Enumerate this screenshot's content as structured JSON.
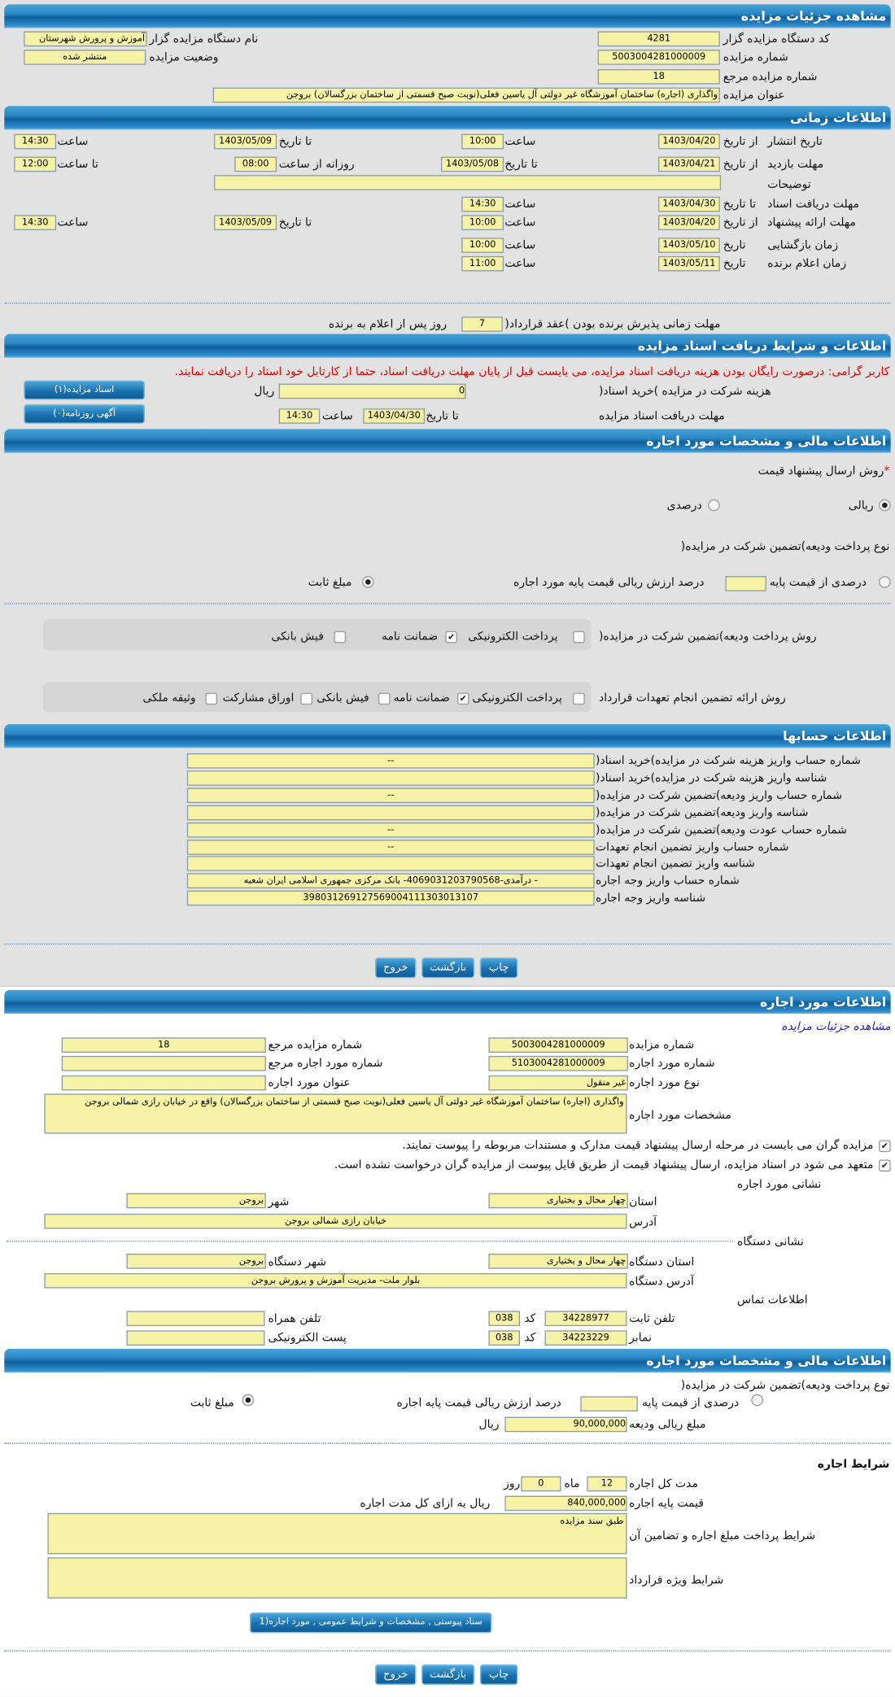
{
  "details": {
    "title": "مشاهده جزئیات مزایده",
    "org_code_label": "کد دستگاه مزایده گزار",
    "org_code": "4281",
    "org_name_label": "نام دستگاه مزایده گزار",
    "org_name": "آموزش و پرورش شهرستان",
    "auction_no_label": "شماره مزایده",
    "auction_no": "5003004281000009",
    "status_label": "وضعیت مزایده",
    "status": "منتشر شده",
    "ref_no_label": "شماره مزایده مرجع",
    "ref_no": "18",
    "title_label": "عنوان مزایده",
    "auction_title": "واگذاری (اجاره) ساختمان  آموزشگاه غیر دولتی آل یاسین فعلی(نوبت صبح قسمتی از ساختمان بزرگسالان) بروجن"
  },
  "time": {
    "title": "اطلاعات زمانی",
    "from_date": "از تاریخ",
    "to_date": "تا تاریخ",
    "date": "تاریخ",
    "hour": "ساعت",
    "to_hour": "تا ساعت",
    "daily_from_hour": "روزانه از ساعت",
    "notes_label": "توضیحات",
    "notes": "",
    "publish": {
      "label": "تاریخ انتشار",
      "from_date": "1403/04/20",
      "from_time": "10:00",
      "to_date": "1403/05/09",
      "to_time": "14:30"
    },
    "visit": {
      "label": "مهلت بازدید",
      "from_date": "1403/04/21",
      "to_date": "1403/05/08",
      "daily_from": "08:00",
      "to_time": "12:00"
    },
    "docs": {
      "label": "مهلت دریافت اسناد",
      "to_date": "1403/04/30",
      "to_time": "14:30"
    },
    "offer": {
      "label": "مهلت ارائه پیشنهاد",
      "from_date": "1403/04/20",
      "from_time": "10:00",
      "to_date": "1403/05/09",
      "to_time": "14:30"
    },
    "opening": {
      "label": "زمان بازگشایی",
      "date": "1403/05/10",
      "time": "10:00"
    },
    "winner": {
      "label": "زمان اعلام برنده",
      "date": "1403/05/11",
      "time": "11:00"
    },
    "acceptance": {
      "label_before": "مهلت زمانی پذیرش برنده بودن )عقد قرارداد(",
      "days": "7",
      "label_after": "روز پس از اعلام به برنده"
    }
  },
  "docs": {
    "title": "اطلاعات و شرایط دریافت اسناد مزایده",
    "notice": "کاربر گرامی: درصورت رایگان بودن هزینه دریافت اسناد مزایده، می بایست قبل از پایان مهلت دریافت اسناد، حتما از کارتابل خود اسناد را دریافت نمایند.",
    "fee_label": "هزینه شرکت در مزایده )خرید اسناد(",
    "fee": "0",
    "currency": "ریال",
    "deadline_label": "مهلت دریافت اسناد مزایده",
    "to_date_label": "تا تاریخ",
    "to_date": "1403/04/30",
    "hour_label": "ساعت",
    "to_time": "14:30",
    "auction_docs_button": "اسناد مزایده(۱)",
    "newspaper_button": "آگهی روزنامه(۰)"
  },
  "finance": {
    "title": "اطلاعات مالی و مشخصات مورد اجاره",
    "required_mark": "*",
    "price_method_label": "روش ارسال پیشنهاد قیمت",
    "price_method_options": [
      {
        "label": "ریالی",
        "checked": true
      },
      {
        "label": "درصدی",
        "checked": false
      }
    ],
    "deposit_type_label": "نوع پرداخت ودیعه)تضمین شرکت در مزایده(",
    "percent_option": "درصدی از قیمت پایه",
    "percent_value": "",
    "percent_desc": "درصد ارزش ریالی قیمت پایه مورد اجاره",
    "fixed_option": "مبلغ ثابت",
    "fixed_checked": true,
    "deposit_method_label": "روش پرداخت ودیعه)تضمین شرکت در مزایده(",
    "deposit_methods": [
      {
        "label": "پرداخت الکترونیکی",
        "checked": false
      },
      {
        "label": "ضمانت نامه",
        "checked": true
      },
      {
        "label": "فیش بانکی",
        "checked": false
      }
    ],
    "guarantee_label": "روش ارائه تضمین انجام تعهدات قرارداد",
    "guarantee_methods": [
      {
        "label": "پرداخت الکترونیکی",
        "checked": false
      },
      {
        "label": "ضمانت نامه",
        "checked": true
      },
      {
        "label": "فیش بانکی",
        "checked": false
      },
      {
        "label": "اوراق مشارکت",
        "checked": false
      },
      {
        "label": "وثیقه ملکی",
        "checked": false
      }
    ]
  },
  "accounts": {
    "title": "اطلاعات حسابها",
    "rows": [
      {
        "label": "شماره حساب واریز هزینه شرکت در مزایده)خرید اسناد(",
        "value": "--"
      },
      {
        "label": "شناسه واریز هزینه شرکت در مزایده)خرید اسناد(",
        "value": ""
      },
      {
        "label": "شماره حساب واریز ودیعه)تضمین شرکت در مزایده(",
        "value": "--"
      },
      {
        "label": "شناسه واریز ودیعه)تضمین شرکت در مزایده(",
        "value": ""
      },
      {
        "label": "شماره حساب عودت ودیعه)تضمین شرکت در مزایده(",
        "value": "--"
      },
      {
        "label": "شماره حساب واریز تضمین انجام تعهدات",
        "value": "--"
      },
      {
        "label": "شناسه واریز تضمین انجام تعهدات",
        "value": ""
      },
      {
        "label": "شماره حساب واریز وجه اجاره",
        "value": "- درآمدی-4069031203790568- بانک مرکزی جمهوری اسلامی ایران شعبه"
      },
      {
        "label": "شناسه واریز وجه اجاره",
        "value": "398031269127569004111303013107"
      }
    ]
  },
  "actions": {
    "print": "چاپ",
    "back": "بازگشت",
    "exit": "خروج"
  },
  "lease": {
    "title": "اطلاعات مورد اجاره",
    "view_details_link": "مشاهده جزئیات مزایده",
    "auction_no_label": "شماره مزایده",
    "auction_no": "5003004281000009",
    "ref_no_label": "شماره مزایده مرجع",
    "ref_no": "18",
    "item_no_label": "شماره مورد اجاره",
    "item_no": "5103004281000009",
    "item_ref_label": "شماره مورد اجاره مرجع",
    "item_ref": "",
    "item_type_label": "نوع مورد اجاره",
    "item_type": "غیر منقول",
    "item_title_label": "عنوان مورد اجاره",
    "item_title": "",
    "spec_label": "مشخصات مورد اجاره",
    "spec": "واگذاری (اجاره) ساختمان  آموزشگاه غیر دولتی آل یاسین فعلی(نوبت صبح قسمتی از ساختمان بزرگسالان) واقع در خیابان رازی شمالی  بروجن",
    "check1": "مزایده گران می بایست در مرحله ارسال پیشنهاد قیمت مدارک و مستندات مربوطه را پیوست نمایند.",
    "check2": "متعهد می شود در اسناد مزایده، ارسال پیشنهاد قیمت از طریق فایل پیوست از مزایده گران درخواست نشده است.",
    "location_title": "نشانی مورد اجاره",
    "province_label": "استان",
    "province": "چهار محال و بختیاری",
    "city_label": "شهر",
    "city": "بروجن",
    "address_label": "آدرس",
    "address": "خیابان رازی شمالی  بروجن",
    "org_location_title": "نشانی دستگاه",
    "org_province_label": "استان دستگاه",
    "org_province": "چهار محال و بختیاری",
    "org_city_label": "شهر دستگاه",
    "org_city": "بروجن",
    "org_address_label": "آدرس دستگاه",
    "org_address": "بلوار ملت- مدیریت آموزش و پرورش بروجن",
    "contact_title": "اطلاعات تماس",
    "phone_label": "تلفن ثابت",
    "phone": "34228977",
    "code_label": "کد",
    "phone_code": "038",
    "mobile_label": "تلفن همراه",
    "mobile": "",
    "fax_label": "نمابر",
    "fax": "34223229",
    "fax_code": "038",
    "email_label": "پست الکترونیکی",
    "email": ""
  },
  "lease_finance": {
    "title": "اطلاعات مالی و مشخصات مورد اجاره",
    "deposit_type_label": "نوع پرداخت ودیعه)تضمین شرکت در مزایده(",
    "percent_option": "درصدی از قیمت پایه",
    "percent_value": "",
    "percent_desc": "درصد ارزش ریالی قیمت پایه اجاره",
    "fixed_option": "مبلغ ثابت",
    "deposit_amount_label": "مبلغ ریالی ودیعه",
    "deposit_amount": "90,000,000",
    "currency": "ریال",
    "terms_title": "شرایط اجاره",
    "duration_label": "مدت کل اجاره",
    "months": "12",
    "months_label": "ماه",
    "days": "0",
    "days_label": "روز",
    "base_price_label": "قیمت پایه اجاره",
    "base_price": "840,000,000",
    "base_price_unit": "ریال به ازای کل مدت اجاره",
    "payment_terms_label": "شرایط پرداخت مبلغ اجاره و تضامین آن",
    "payment_terms": "طبق سند مزایده",
    "special_terms_label": "شرایط ویژه قرارداد",
    "special_terms": "",
    "attachments_button": "سناد پیوستی , مشخصات و شرایط عمومی , مورد اجاره(1"
  }
}
